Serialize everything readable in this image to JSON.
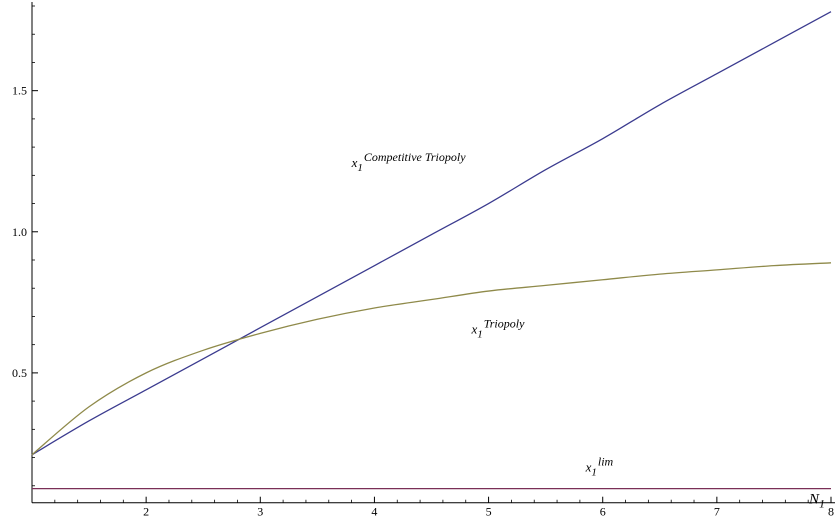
{
  "chart_data": {
    "type": "line",
    "xlabel": {
      "base": "N",
      "sub": "1"
    },
    "ylabel": "",
    "xlim": [
      1,
      8
    ],
    "ylim": [
      0,
      1.8
    ],
    "x_origin": 1,
    "y_origin": 0.04,
    "x_ticks": [
      2,
      3,
      4,
      5,
      6,
      7,
      8
    ],
    "y_ticks": [
      0.5,
      1.0,
      1.5
    ],
    "y_tick_labels": [
      "0.5",
      "1.0",
      "1.5"
    ],
    "grid": false,
    "series": [
      {
        "id": "competitive",
        "color": "#3b3b8f",
        "x": [
          1,
          1.5,
          2,
          2.5,
          3,
          3.5,
          4,
          4.5,
          5,
          5.5,
          6,
          6.5,
          7,
          7.5,
          8
        ],
        "y": [
          0.21,
          0.33,
          0.44,
          0.55,
          0.66,
          0.77,
          0.88,
          0.99,
          1.1,
          1.22,
          1.33,
          1.45,
          1.56,
          1.67,
          1.78
        ]
      },
      {
        "id": "triopoly",
        "color": "#8f8a4a",
        "x": [
          1,
          1.5,
          2,
          2.5,
          3,
          3.5,
          4,
          4.5,
          5,
          5.5,
          6,
          6.5,
          7,
          7.5,
          8
        ],
        "y": [
          0.21,
          0.38,
          0.5,
          0.58,
          0.64,
          0.69,
          0.73,
          0.76,
          0.79,
          0.81,
          0.83,
          0.85,
          0.865,
          0.88,
          0.89
        ]
      },
      {
        "id": "lim",
        "color": "#7a2f57",
        "x": [
          1,
          8
        ],
        "y": [
          0.09,
          0.09
        ]
      }
    ],
    "annotations": [
      {
        "id": "competitive",
        "base": "x",
        "sub": "1",
        "sup": "Competitive Triopoly",
        "x": 3.8,
        "y": 1.23
      },
      {
        "id": "triopoly",
        "base": "x",
        "sub": "1",
        "sup": "Triopoly",
        "x": 4.85,
        "y": 0.64
      },
      {
        "id": "lim",
        "base": "x",
        "sub": "1",
        "sup": "lim",
        "x": 5.85,
        "y": 0.15
      }
    ]
  }
}
